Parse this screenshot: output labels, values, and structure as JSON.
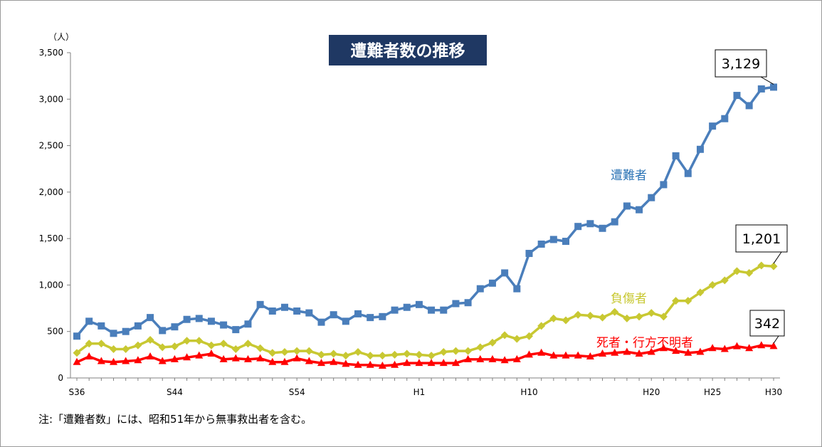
{
  "chart_data": {
    "type": "line",
    "title": "遭難者数の推移",
    "ylabel": "（人）",
    "ylim": [
      0,
      3500
    ],
    "yticks": [
      0,
      500,
      1000,
      1500,
      2000,
      2500,
      3000,
      3500
    ],
    "ytick_labels": [
      "0",
      "500",
      "1,000",
      "1,500",
      "2,000",
      "2,500",
      "3,000",
      "3,500"
    ],
    "x": [
      1961,
      1962,
      1963,
      1964,
      1965,
      1966,
      1967,
      1968,
      1969,
      1970,
      1971,
      1972,
      1973,
      1974,
      1975,
      1976,
      1977,
      1978,
      1979,
      1980,
      1981,
      1982,
      1983,
      1984,
      1985,
      1986,
      1987,
      1988,
      1989,
      1990,
      1991,
      1992,
      1993,
      1994,
      1995,
      1996,
      1997,
      1998,
      1999,
      2000,
      2001,
      2002,
      2003,
      2004,
      2005,
      2006,
      2007,
      2008,
      2009,
      2010,
      2011,
      2012,
      2013,
      2014,
      2015,
      2016,
      2017,
      2018
    ],
    "xticks": [
      {
        "x": 1961,
        "label": "S36"
      },
      {
        "x": 1969,
        "label": "S44"
      },
      {
        "x": 1979,
        "label": "S54"
      },
      {
        "x": 1989,
        "label": "H1"
      },
      {
        "x": 1998,
        "label": "H10"
      },
      {
        "x": 2008,
        "label": "H20"
      },
      {
        "x": 2013,
        "label": "H25"
      },
      {
        "x": 2018,
        "label": "H30"
      }
    ],
    "grid": false,
    "series": [
      {
        "name": "遭難者",
        "color": "#4a7ebb",
        "marker": "square",
        "values": [
          450,
          610,
          560,
          480,
          500,
          560,
          650,
          510,
          550,
          630,
          640,
          610,
          570,
          520,
          580,
          790,
          720,
          760,
          720,
          700,
          600,
          680,
          610,
          690,
          650,
          660,
          730,
          760,
          790,
          730,
          730,
          800,
          810,
          960,
          1020,
          1130,
          960,
          1340,
          1440,
          1490,
          1470,
          1630,
          1660,
          1610,
          1680,
          1850,
          1810,
          1940,
          2080,
          2390,
          2200,
          2460,
          2710,
          2790,
          3040,
          2930,
          3110,
          3129
        ]
      },
      {
        "name": "負傷者",
        "color": "#c8c832",
        "marker": "diamond",
        "values": [
          270,
          370,
          370,
          310,
          310,
          350,
          410,
          330,
          340,
          400,
          400,
          350,
          370,
          310,
          370,
          320,
          270,
          280,
          290,
          290,
          250,
          260,
          240,
          280,
          240,
          240,
          250,
          260,
          250,
          240,
          280,
          290,
          290,
          330,
          380,
          460,
          420,
          450,
          560,
          640,
          620,
          680,
          670,
          650,
          710,
          640,
          660,
          700,
          660,
          830,
          830,
          920,
          1000,
          1050,
          1150,
          1130,
          1210,
          1201
        ]
      },
      {
        "name": "死者・行方不明者",
        "color": "#ff0000",
        "marker": "triangle",
        "values": [
          170,
          230,
          180,
          170,
          180,
          190,
          230,
          180,
          200,
          220,
          240,
          260,
          200,
          210,
          200,
          210,
          170,
          170,
          210,
          180,
          160,
          170,
          150,
          140,
          140,
          130,
          140,
          160,
          160,
          160,
          160,
          160,
          200,
          200,
          200,
          190,
          200,
          250,
          270,
          240,
          240,
          240,
          230,
          260,
          270,
          280,
          260,
          280,
          320,
          290,
          270,
          280,
          320,
          310,
          340,
          320,
          350,
          342
        ]
      }
    ],
    "callouts": [
      {
        "series": 0,
        "text": "3,129"
      },
      {
        "series": 1,
        "text": "1,201"
      },
      {
        "series": 2,
        "text": "342"
      }
    ],
    "note": "注:「遭難者数」には、昭和51年から無事救出者を含む。"
  }
}
